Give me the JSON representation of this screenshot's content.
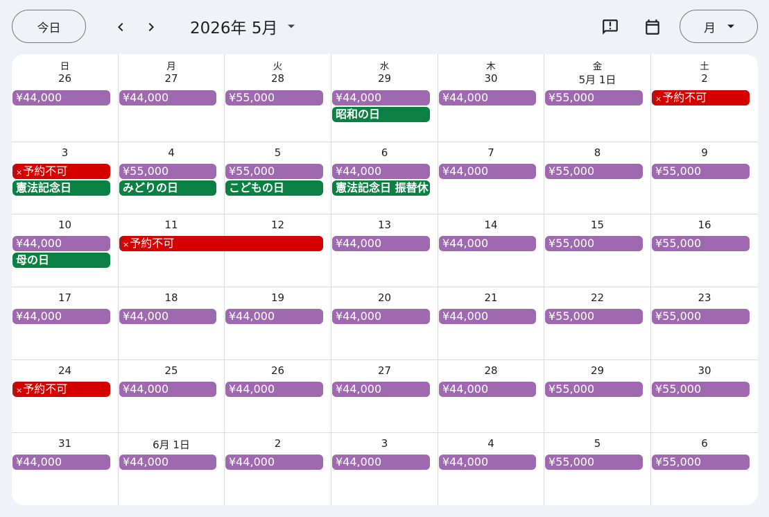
{
  "toolbar": {
    "today_label": "今日",
    "prev_icon": "chevron-left-icon",
    "next_icon": "chevron-right-icon",
    "month_title": "2026年 5月",
    "feedback_icon": "feedback-icon",
    "calendar_icon": "calendar-icon",
    "view_label": "月"
  },
  "colors": {
    "price": "#9e69af",
    "holiday": "#0b8043",
    "blocked": "#d50000",
    "background": "#eff3f8"
  },
  "weekdays": [
    "日",
    "月",
    "火",
    "水",
    "木",
    "金",
    "土"
  ],
  "weeks": [
    [
      {
        "day": "26",
        "events": [
          {
            "type": "price",
            "label": "¥44,000"
          }
        ]
      },
      {
        "day": "27",
        "events": [
          {
            "type": "price",
            "label": "¥44,000"
          }
        ]
      },
      {
        "day": "28",
        "events": [
          {
            "type": "price",
            "label": "¥55,000"
          }
        ]
      },
      {
        "day": "29",
        "events": [
          {
            "type": "price",
            "label": "¥44,000"
          },
          {
            "type": "holiday",
            "label": "昭和の日"
          }
        ]
      },
      {
        "day": "30",
        "events": [
          {
            "type": "price",
            "label": "¥44,000"
          }
        ]
      },
      {
        "day": "5月 1日",
        "events": [
          {
            "type": "price",
            "label": "¥55,000"
          }
        ]
      },
      {
        "day": "2",
        "events": [
          {
            "type": "blocked",
            "label": "予約不可"
          }
        ]
      }
    ],
    [
      {
        "day": "3",
        "events": [
          {
            "type": "blocked",
            "label": "予約不可"
          },
          {
            "type": "holiday",
            "label": "憲法記念日"
          }
        ]
      },
      {
        "day": "4",
        "events": [
          {
            "type": "price",
            "label": "¥55,000"
          },
          {
            "type": "holiday",
            "label": "みどりの日"
          }
        ]
      },
      {
        "day": "5",
        "events": [
          {
            "type": "price",
            "label": "¥55,000"
          },
          {
            "type": "holiday",
            "label": "こどもの日"
          }
        ]
      },
      {
        "day": "6",
        "events": [
          {
            "type": "price",
            "label": "¥44,000"
          },
          {
            "type": "holiday",
            "label": "憲法記念日 振替休日"
          }
        ]
      },
      {
        "day": "7",
        "events": [
          {
            "type": "price",
            "label": "¥44,000"
          }
        ]
      },
      {
        "day": "8",
        "events": [
          {
            "type": "price",
            "label": "¥55,000"
          }
        ]
      },
      {
        "day": "9",
        "events": [
          {
            "type": "price",
            "label": "¥55,000"
          }
        ]
      }
    ],
    [
      {
        "day": "10",
        "events": [
          {
            "type": "price",
            "label": "¥44,000"
          },
          {
            "type": "holiday",
            "label": "母の日"
          }
        ]
      },
      {
        "day": "11",
        "events": [
          {
            "type": "blocked",
            "label": "予約不可",
            "span": 2
          }
        ]
      },
      {
        "day": "12",
        "events": []
      },
      {
        "day": "13",
        "events": [
          {
            "type": "price",
            "label": "¥44,000"
          }
        ]
      },
      {
        "day": "14",
        "events": [
          {
            "type": "price",
            "label": "¥44,000"
          }
        ]
      },
      {
        "day": "15",
        "events": [
          {
            "type": "price",
            "label": "¥55,000"
          }
        ]
      },
      {
        "day": "16",
        "events": [
          {
            "type": "price",
            "label": "¥55,000"
          }
        ]
      }
    ],
    [
      {
        "day": "17",
        "events": [
          {
            "type": "price",
            "label": "¥44,000"
          }
        ]
      },
      {
        "day": "18",
        "events": [
          {
            "type": "price",
            "label": "¥44,000"
          }
        ]
      },
      {
        "day": "19",
        "events": [
          {
            "type": "price",
            "label": "¥44,000"
          }
        ]
      },
      {
        "day": "20",
        "events": [
          {
            "type": "price",
            "label": "¥44,000"
          }
        ]
      },
      {
        "day": "21",
        "events": [
          {
            "type": "price",
            "label": "¥44,000"
          }
        ]
      },
      {
        "day": "22",
        "events": [
          {
            "type": "price",
            "label": "¥55,000"
          }
        ]
      },
      {
        "day": "23",
        "events": [
          {
            "type": "price",
            "label": "¥55,000"
          }
        ]
      }
    ],
    [
      {
        "day": "24",
        "events": [
          {
            "type": "blocked",
            "label": "予約不可"
          }
        ]
      },
      {
        "day": "25",
        "events": [
          {
            "type": "price",
            "label": "¥44,000"
          }
        ]
      },
      {
        "day": "26",
        "events": [
          {
            "type": "price",
            "label": "¥44,000"
          }
        ]
      },
      {
        "day": "27",
        "events": [
          {
            "type": "price",
            "label": "¥44,000"
          }
        ]
      },
      {
        "day": "28",
        "events": [
          {
            "type": "price",
            "label": "¥44,000"
          }
        ]
      },
      {
        "day": "29",
        "events": [
          {
            "type": "price",
            "label": "¥55,000"
          }
        ]
      },
      {
        "day": "30",
        "events": [
          {
            "type": "price",
            "label": "¥55,000"
          }
        ]
      }
    ],
    [
      {
        "day": "31",
        "events": [
          {
            "type": "price",
            "label": "¥44,000"
          }
        ]
      },
      {
        "day": "6月 1日",
        "events": [
          {
            "type": "price",
            "label": "¥44,000"
          }
        ]
      },
      {
        "day": "2",
        "events": [
          {
            "type": "price",
            "label": "¥44,000"
          }
        ]
      },
      {
        "day": "3",
        "events": [
          {
            "type": "price",
            "label": "¥44,000"
          }
        ]
      },
      {
        "day": "4",
        "events": [
          {
            "type": "price",
            "label": "¥44,000"
          }
        ]
      },
      {
        "day": "5",
        "events": [
          {
            "type": "price",
            "label": "¥55,000"
          }
        ]
      },
      {
        "day": "6",
        "events": [
          {
            "type": "price",
            "label": "¥55,000"
          }
        ]
      }
    ]
  ]
}
